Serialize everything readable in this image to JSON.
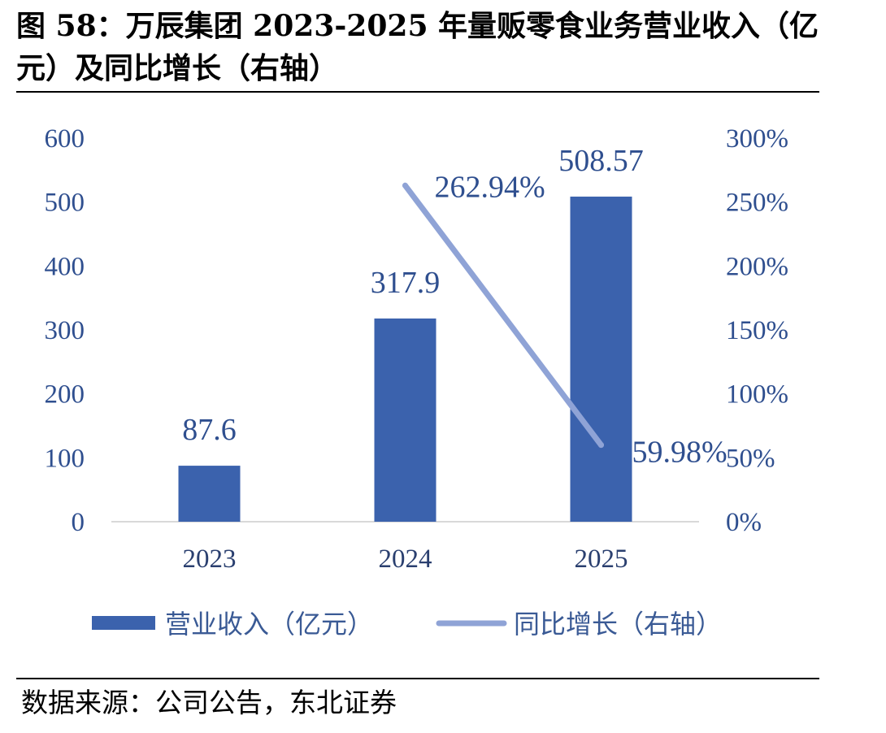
{
  "title": "图 58：万辰集团 2023-2025 年量贩零食业务营业收入（亿元）及同比增长（右轴）",
  "source": "数据来源：公司公告，东北证券",
  "colors": {
    "bar": "#3b62ad",
    "line": "#8fa3d6",
    "label": "#2f4f8f"
  },
  "chart_data": {
    "type": "bar",
    "categories": [
      "2023",
      "2024",
      "2025"
    ],
    "series": [
      {
        "name": "营业收入（亿元）",
        "type": "bar",
        "axis": "left",
        "values": [
          87.6,
          317.9,
          508.57
        ],
        "labels": [
          "87.6",
          "317.9",
          "508.57"
        ]
      },
      {
        "name": "同比增长（右轴）",
        "type": "line",
        "axis": "right",
        "values": [
          null,
          262.94,
          59.98
        ],
        "labels": [
          "",
          "262.94%",
          "59.98%"
        ]
      }
    ],
    "y_left": {
      "ylim": [
        0,
        600
      ],
      "ticks": [
        0,
        100,
        200,
        300,
        400,
        500,
        600
      ],
      "tick_labels": [
        "0",
        "100",
        "200",
        "300",
        "400",
        "500",
        "600"
      ]
    },
    "y_right": {
      "ylim": [
        0,
        300
      ],
      "ticks": [
        0,
        50,
        100,
        150,
        200,
        250,
        300
      ],
      "tick_labels": [
        "0%",
        "50%",
        "100%",
        "150%",
        "200%",
        "250%",
        "300%"
      ]
    },
    "grid": false,
    "legend_position": "bottom"
  }
}
